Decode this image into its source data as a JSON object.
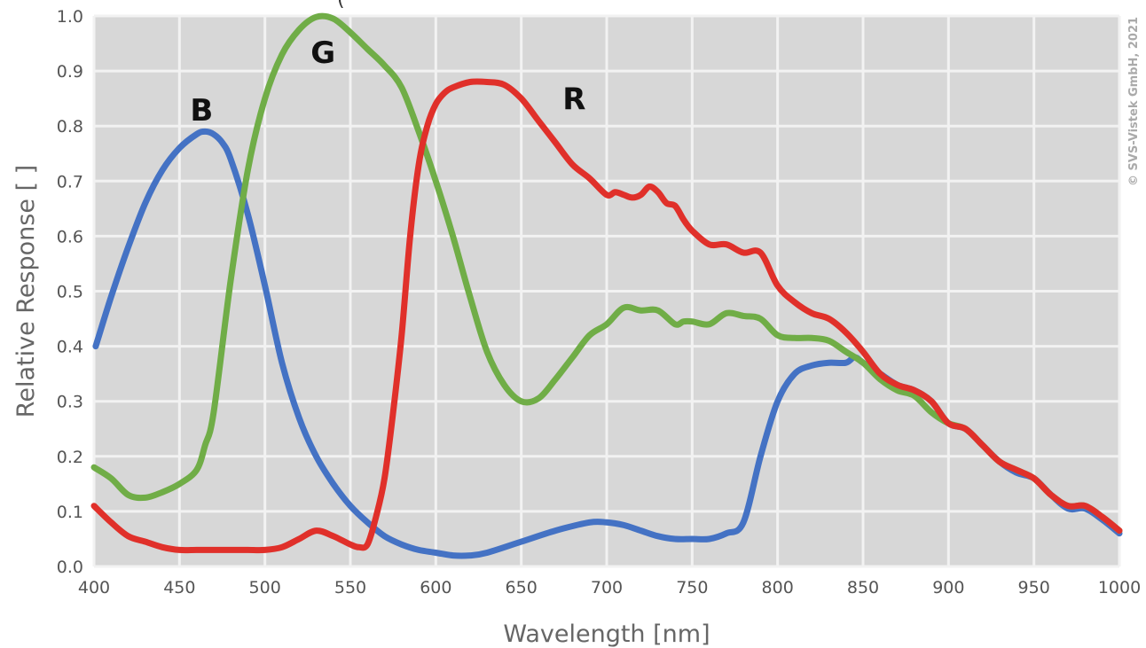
{
  "chart_data": {
    "type": "line",
    "title": "",
    "xlabel": "Wavelength [nm]",
    "ylabel": "Relative Response [ ]",
    "xlim": [
      400,
      1000
    ],
    "ylim": [
      0.0,
      1.0
    ],
    "xticks": [
      "400",
      "450",
      "500",
      "550",
      "600",
      "650",
      "700",
      "750",
      "800",
      "850",
      "900",
      "950",
      "1000"
    ],
    "yticks": [
      "0.0",
      "0.1",
      "0.2",
      "0.3",
      "0.4",
      "0.5",
      "0.6",
      "0.7",
      "0.8",
      "0.9",
      "1.0"
    ],
    "grid": true,
    "legend": "none",
    "copyright": "© SVS-Vistek GmbH, 2021",
    "series": [
      {
        "name": "B",
        "color": "#4472c4",
        "x": [
          401,
          410,
          420,
          430,
          440,
          450,
          460,
          465,
          470,
          475,
          480,
          490,
          500,
          510,
          520,
          530,
          540,
          550,
          560,
          570,
          580,
          590,
          600,
          610,
          620,
          630,
          650,
          670,
          690,
          700,
          710,
          720,
          730,
          740,
          750,
          760,
          770,
          780,
          790,
          800,
          810,
          820,
          830,
          840,
          845,
          850,
          860,
          870,
          880,
          890,
          900,
          910,
          920,
          930,
          940,
          950,
          960,
          970,
          980,
          990,
          1000
        ],
        "y": [
          0.4,
          0.49,
          0.58,
          0.66,
          0.72,
          0.76,
          0.785,
          0.79,
          0.785,
          0.77,
          0.74,
          0.64,
          0.51,
          0.37,
          0.27,
          0.2,
          0.15,
          0.11,
          0.08,
          0.055,
          0.04,
          0.03,
          0.025,
          0.02,
          0.02,
          0.025,
          0.045,
          0.065,
          0.08,
          0.08,
          0.075,
          0.065,
          0.055,
          0.05,
          0.05,
          0.05,
          0.06,
          0.08,
          0.2,
          0.3,
          0.35,
          0.365,
          0.37,
          0.37,
          0.38,
          0.37,
          0.35,
          0.33,
          0.32,
          0.3,
          0.26,
          0.25,
          0.22,
          0.19,
          0.17,
          0.16,
          0.13,
          0.105,
          0.105,
          0.085,
          0.06
        ]
      },
      {
        "name": "G",
        "color": "#70ad47",
        "x": [
          400,
          410,
          420,
          430,
          440,
          450,
          460,
          465,
          470,
          480,
          490,
          500,
          510,
          520,
          530,
          540,
          550,
          560,
          570,
          580,
          590,
          600,
          610,
          620,
          630,
          640,
          650,
          660,
          670,
          680,
          690,
          700,
          710,
          720,
          730,
          740,
          745,
          750,
          760,
          770,
          780,
          790,
          800,
          810,
          820,
          830,
          840,
          850,
          860,
          870,
          880,
          890,
          900,
          910,
          920,
          930,
          940,
          950,
          960,
          970,
          980,
          990,
          1000
        ],
        "y": [
          0.18,
          0.16,
          0.13,
          0.125,
          0.135,
          0.15,
          0.175,
          0.22,
          0.28,
          0.52,
          0.72,
          0.85,
          0.93,
          0.975,
          0.998,
          0.995,
          0.97,
          0.94,
          0.91,
          0.87,
          0.79,
          0.7,
          0.6,
          0.49,
          0.39,
          0.33,
          0.3,
          0.305,
          0.34,
          0.38,
          0.42,
          0.44,
          0.47,
          0.465,
          0.465,
          0.44,
          0.445,
          0.445,
          0.44,
          0.46,
          0.455,
          0.45,
          0.42,
          0.415,
          0.415,
          0.41,
          0.39,
          0.37,
          0.34,
          0.32,
          0.31,
          0.28,
          0.26,
          0.25,
          0.22,
          0.19,
          0.175,
          0.16,
          0.13,
          0.11,
          0.11,
          0.09,
          0.065
        ]
      },
      {
        "name": "R",
        "color": "#e0302a",
        "x": [
          400,
          410,
          420,
          430,
          440,
          450,
          460,
          470,
          480,
          490,
          500,
          510,
          520,
          530,
          540,
          550,
          555,
          560,
          565,
          570,
          575,
          580,
          585,
          590,
          595,
          600,
          605,
          610,
          620,
          630,
          640,
          650,
          660,
          670,
          680,
          690,
          700,
          705,
          710,
          715,
          720,
          725,
          730,
          735,
          740,
          745,
          750,
          760,
          770,
          780,
          790,
          800,
          810,
          820,
          830,
          840,
          850,
          860,
          870,
          880,
          890,
          900,
          910,
          920,
          930,
          940,
          950,
          960,
          970,
          980,
          990,
          1000
        ],
        "y": [
          0.11,
          0.08,
          0.055,
          0.045,
          0.035,
          0.03,
          0.03,
          0.03,
          0.03,
          0.03,
          0.03,
          0.035,
          0.05,
          0.065,
          0.055,
          0.04,
          0.035,
          0.04,
          0.09,
          0.16,
          0.28,
          0.42,
          0.6,
          0.73,
          0.8,
          0.84,
          0.86,
          0.87,
          0.88,
          0.88,
          0.875,
          0.85,
          0.81,
          0.77,
          0.73,
          0.705,
          0.675,
          0.68,
          0.675,
          0.67,
          0.675,
          0.69,
          0.68,
          0.66,
          0.655,
          0.63,
          0.61,
          0.585,
          0.585,
          0.57,
          0.57,
          0.51,
          0.48,
          0.46,
          0.45,
          0.425,
          0.39,
          0.35,
          0.33,
          0.32,
          0.3,
          0.26,
          0.25,
          0.22,
          0.19,
          0.175,
          0.16,
          0.13,
          0.11,
          0.11,
          0.09,
          0.065
        ]
      }
    ],
    "annotations": [
      {
        "text": "B",
        "x": 463,
        "y": 0.81
      },
      {
        "text": "G",
        "x": 534,
        "y": 0.915
      },
      {
        "text": "R",
        "x": 681,
        "y": 0.83
      }
    ]
  }
}
